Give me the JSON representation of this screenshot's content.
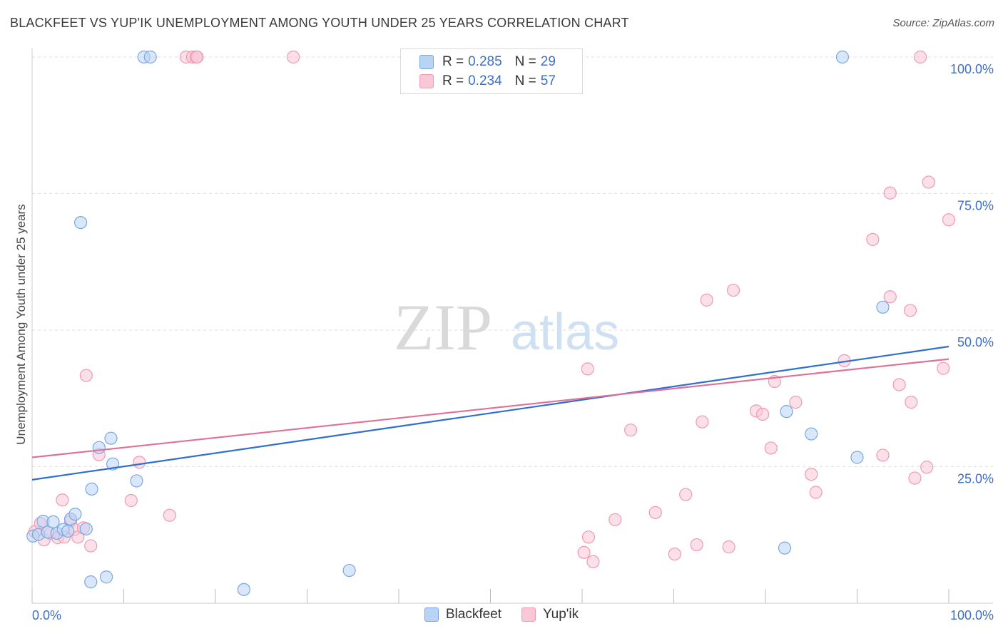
{
  "header": {
    "title": "BLACKFEET VS YUP'IK UNEMPLOYMENT AMONG YOUTH UNDER 25 YEARS CORRELATION CHART",
    "source": "Source: ZipAtlas.com"
  },
  "watermark": "ZIPatlas",
  "colors": {
    "blue_fill": "#b9d3f5",
    "blue_stroke": "#7aa7e3",
    "blue_line": "#2f6fcf",
    "pink_fill": "#f9c7d6",
    "pink_stroke": "#ee9ab4",
    "pink_line": "#e07098",
    "tick_text": "#3d6fc4",
    "grid": "#dddddd"
  },
  "legend": {
    "rows": [
      {
        "series": "Blackfeet",
        "r_label": "R =",
        "r_value": "0.285",
        "n_label": "N =",
        "n_value": "29"
      },
      {
        "series": "Yup'ik",
        "r_label": "R =",
        "r_value": "0.234",
        "n_label": "N =",
        "n_value": "57"
      }
    ]
  },
  "chart_data": {
    "type": "scatter",
    "title": "BLACKFEET VS YUP'IK UNEMPLOYMENT AMONG YOUTH UNDER 25 YEARS CORRELATION CHART",
    "xlabel": "",
    "ylabel": "Unemployment Among Youth under 25 years",
    "xlim": [
      0,
      100
    ],
    "ylim": [
      0,
      100
    ],
    "x_tick_labels": [
      {
        "value": 0,
        "label": "0.0%"
      },
      {
        "value": 100,
        "label": "100.0%"
      }
    ],
    "y_tick_labels": [
      {
        "value": 25,
        "label": "25.0%"
      },
      {
        "value": 50,
        "label": "50.0%"
      },
      {
        "value": 75,
        "label": "75.0%"
      },
      {
        "value": 100,
        "label": "100.0%"
      }
    ],
    "grid": true,
    "legend_position": "top-center",
    "series": [
      {
        "name": "Blackfeet",
        "color": "#b9d3f5",
        "trend": {
          "y_at_0": 22.6,
          "y_at_100": 47.0
        },
        "points": [
          [
            0.1,
            12.3
          ],
          [
            0.7,
            12.6
          ],
          [
            1.2,
            15.0
          ],
          [
            1.7,
            13.0
          ],
          [
            2.3,
            14.9
          ],
          [
            2.7,
            12.8
          ],
          [
            3.4,
            13.5
          ],
          [
            3.9,
            13.2
          ],
          [
            4.2,
            15.4
          ],
          [
            4.7,
            16.3
          ],
          [
            5.9,
            13.6
          ],
          [
            5.3,
            69.7
          ],
          [
            6.5,
            20.9
          ],
          [
            7.3,
            28.5
          ],
          [
            8.1,
            4.8
          ],
          [
            8.6,
            30.2
          ],
          [
            8.8,
            25.5
          ],
          [
            11.4,
            22.4
          ],
          [
            12.2,
            100.0
          ],
          [
            12.9,
            100.0
          ],
          [
            6.4,
            3.9
          ],
          [
            23.1,
            2.5
          ],
          [
            34.6,
            6.0
          ],
          [
            82.3,
            35.1
          ],
          [
            85.0,
            31.0
          ],
          [
            88.4,
            100.0
          ],
          [
            90.0,
            26.7
          ],
          [
            92.8,
            54.2
          ],
          [
            82.1,
            10.1
          ]
        ]
      },
      {
        "name": "Yup'ik",
        "color": "#f9c7d6",
        "trend": {
          "y_at_0": 26.7,
          "y_at_100": 44.7
        },
        "points": [
          [
            0.3,
            13.1
          ],
          [
            0.9,
            14.6
          ],
          [
            1.3,
            11.6
          ],
          [
            2.0,
            12.8
          ],
          [
            2.8,
            12.0
          ],
          [
            3.3,
            18.9
          ],
          [
            3.5,
            12.1
          ],
          [
            4.2,
            15.0
          ],
          [
            4.6,
            13.5
          ],
          [
            5.0,
            12.1
          ],
          [
            5.6,
            13.8
          ],
          [
            5.9,
            41.7
          ],
          [
            6.4,
            10.5
          ],
          [
            7.3,
            27.2
          ],
          [
            10.8,
            18.8
          ],
          [
            11.7,
            25.8
          ],
          [
            15.0,
            16.1
          ],
          [
            16.8,
            100.0
          ],
          [
            17.5,
            100.0
          ],
          [
            17.9,
            100.0
          ],
          [
            18.0,
            100.0
          ],
          [
            28.5,
            100.0
          ],
          [
            60.6,
            42.9
          ],
          [
            60.2,
            9.3
          ],
          [
            60.7,
            12.1
          ],
          [
            61.2,
            7.6
          ],
          [
            63.6,
            15.3
          ],
          [
            65.3,
            31.7
          ],
          [
            68.0,
            16.6
          ],
          [
            70.1,
            9.0
          ],
          [
            71.3,
            19.9
          ],
          [
            72.5,
            10.7
          ],
          [
            73.1,
            33.2
          ],
          [
            73.6,
            55.5
          ],
          [
            76.0,
            10.3
          ],
          [
            76.5,
            57.3
          ],
          [
            79.0,
            35.2
          ],
          [
            79.7,
            34.6
          ],
          [
            80.6,
            28.4
          ],
          [
            81.0,
            40.6
          ],
          [
            83.3,
            36.8
          ],
          [
            85.0,
            23.6
          ],
          [
            85.5,
            20.3
          ],
          [
            88.6,
            44.4
          ],
          [
            91.7,
            66.6
          ],
          [
            92.8,
            27.1
          ],
          [
            93.6,
            56.1
          ],
          [
            93.6,
            75.1
          ],
          [
            94.6,
            40.0
          ],
          [
            95.8,
            53.6
          ],
          [
            95.9,
            36.8
          ],
          [
            96.3,
            22.9
          ],
          [
            96.9,
            100.0
          ],
          [
            97.6,
            24.9
          ],
          [
            97.8,
            77.1
          ],
          [
            99.4,
            43.0
          ],
          [
            100.0,
            70.2
          ]
        ]
      }
    ]
  }
}
